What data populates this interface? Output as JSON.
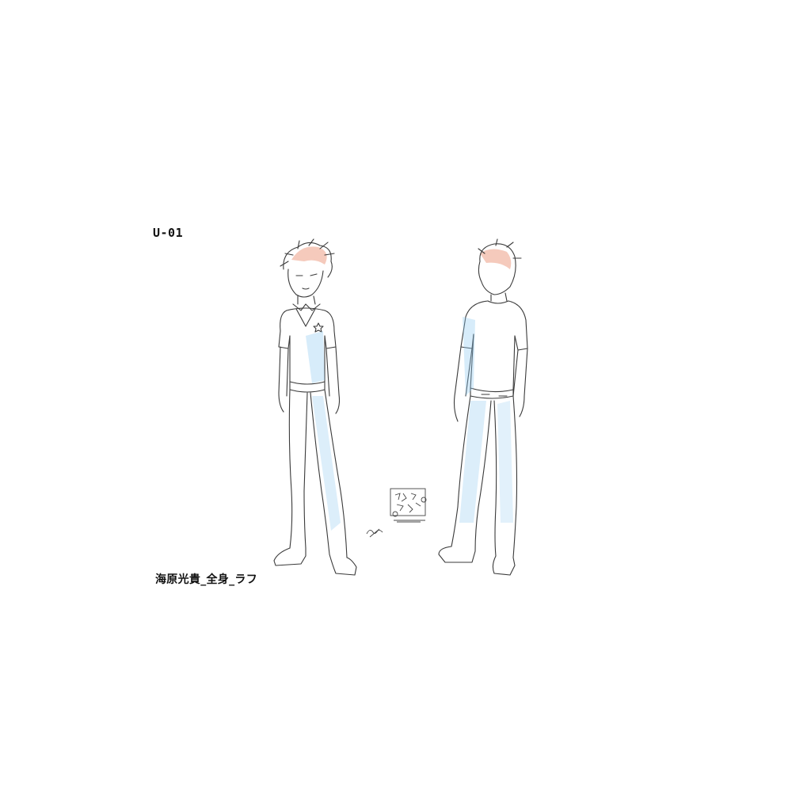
{
  "sheet": {
    "code": "U-01",
    "caption": "海原光貴_全身_ラフ"
  },
  "colors": {
    "line": "#3a3a3a",
    "hair_shade": "#e88a6a",
    "cloth_shade": "#8cc8f0",
    "background": "#ffffff"
  },
  "figures": [
    {
      "name": "front-view-figure",
      "icon": "character-front-view"
    },
    {
      "name": "back-view-figure",
      "icon": "character-back-view"
    }
  ],
  "marks": {
    "stamp_icon": "artist-stamp",
    "signature_icon": "signature-mark"
  }
}
